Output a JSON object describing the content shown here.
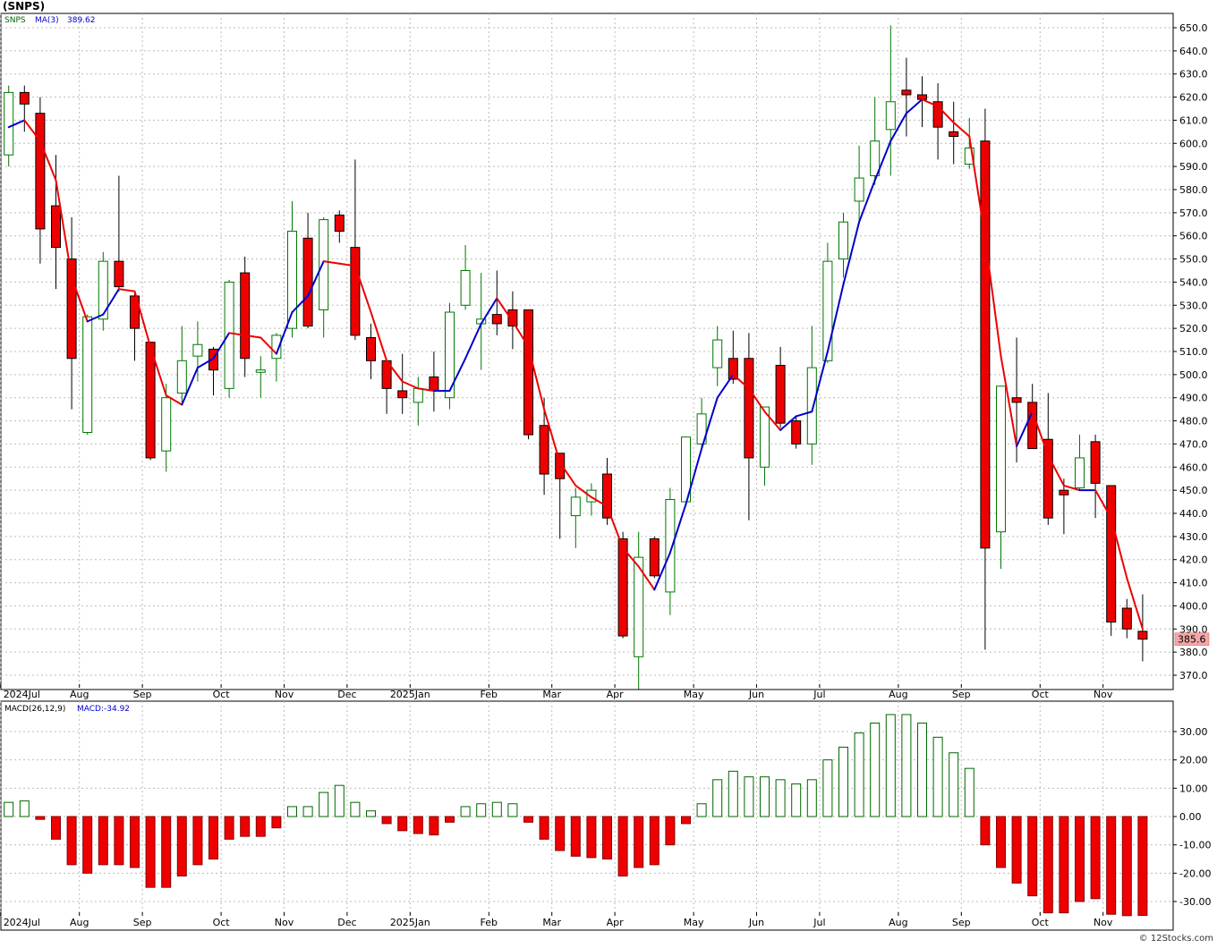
{
  "title": "(SNPS)",
  "footer": "© 12Stocks.com",
  "colors": {
    "up_candle": "#007700",
    "down_candle": "#ee0000",
    "ma_rising": "#0000cc",
    "ma_falling": "#ee0000",
    "grid": "#bbbbbb",
    "price_label_bg": "#f4a6a6",
    "macd_pos": "#006600",
    "macd_neg": "#ee0000"
  },
  "price_panel": {
    "legend_symbol": "SNPS",
    "legend_ma": "MA(3)",
    "legend_ma_value": "389.62",
    "last_price_label": "385.6",
    "last_price": 385.6
  },
  "macd_panel": {
    "legend_params": "MACD(26,12,9)",
    "legend_value": "MACD:-34.92"
  },
  "x_axis_labels": [
    {
      "text": "2024Jul",
      "i": 0
    },
    {
      "text": "Aug",
      "i": 5
    },
    {
      "text": "Sep",
      "i": 9
    },
    {
      "text": "Oct",
      "i": 14
    },
    {
      "text": "Nov",
      "i": 18
    },
    {
      "text": "Dec",
      "i": 22
    },
    {
      "text": "2025Jan",
      "i": 26
    },
    {
      "text": "Feb",
      "i": 31
    },
    {
      "text": "Mar",
      "i": 35
    },
    {
      "text": "Apr",
      "i": 39
    },
    {
      "text": "May",
      "i": 44
    },
    {
      "text": "Jun",
      "i": 48
    },
    {
      "text": "Jul",
      "i": 52
    },
    {
      "text": "Aug",
      "i": 57
    },
    {
      "text": "Sep",
      "i": 61
    },
    {
      "text": "Oct",
      "i": 66
    },
    {
      "text": "Nov",
      "i": 70
    }
  ],
  "chart_data": {
    "type": "candlestick",
    "title": "(SNPS)",
    "price_axis": {
      "min": 365,
      "max": 655,
      "ticks": [
        "370.0",
        "380.0",
        "390.0",
        "400.0",
        "410.0",
        "420.0",
        "430.0",
        "440.0",
        "450.0",
        "460.0",
        "470.0",
        "480.0",
        "490.0",
        "500.0",
        "510.0",
        "520.0",
        "530.0",
        "540.0",
        "550.0",
        "560.0",
        "570.0",
        "580.0",
        "590.0",
        "600.0",
        "610.0",
        "620.0",
        "630.0",
        "640.0",
        "650.0"
      ]
    },
    "macd_axis": {
      "min": -35,
      "max": 38,
      "ticks": [
        "-30.00",
        "-20.00",
        "-10.00",
        "0.00",
        "10.00",
        "20.00",
        "30.00"
      ]
    },
    "grid": true,
    "candles": [
      {
        "o": 595,
        "h": 625,
        "l": 590,
        "c": 622
      },
      {
        "o": 622,
        "h": 625,
        "l": 605,
        "c": 617
      },
      {
        "o": 613,
        "h": 620,
        "l": 548,
        "c": 563
      },
      {
        "o": 573,
        "h": 595,
        "l": 537,
        "c": 555
      },
      {
        "o": 550,
        "h": 568,
        "l": 485,
        "c": 507
      },
      {
        "o": 475,
        "h": 526,
        "l": 474,
        "c": 525
      },
      {
        "o": 524,
        "h": 553,
        "l": 519,
        "c": 549
      },
      {
        "o": 549,
        "h": 586,
        "l": 536,
        "c": 538
      },
      {
        "o": 534,
        "h": 535,
        "l": 506,
        "c": 520
      },
      {
        "o": 514,
        "h": 514,
        "l": 463,
        "c": 464
      },
      {
        "o": 467,
        "h": 496,
        "l": 458,
        "c": 490
      },
      {
        "o": 492,
        "h": 521,
        "l": 488,
        "c": 506
      },
      {
        "o": 508,
        "h": 523,
        "l": 497,
        "c": 513
      },
      {
        "o": 511,
        "h": 512,
        "l": 491,
        "c": 502
      },
      {
        "o": 494,
        "h": 541,
        "l": 490,
        "c": 540
      },
      {
        "o": 544,
        "h": 551,
        "l": 499,
        "c": 507
      },
      {
        "o": 501,
        "h": 508,
        "l": 490,
        "c": 502
      },
      {
        "o": 507,
        "h": 518,
        "l": 497,
        "c": 517
      },
      {
        "o": 520,
        "h": 575,
        "l": 516,
        "c": 562
      },
      {
        "o": 559,
        "h": 570,
        "l": 520,
        "c": 521
      },
      {
        "o": 528,
        "h": 568,
        "l": 516,
        "c": 567
      },
      {
        "o": 569,
        "h": 571,
        "l": 557,
        "c": 562
      },
      {
        "o": 555,
        "h": 593,
        "l": 515,
        "c": 517
      },
      {
        "o": 516,
        "h": 522,
        "l": 498,
        "c": 506
      },
      {
        "o": 506,
        "h": 506,
        "l": 483,
        "c": 494
      },
      {
        "o": 493,
        "h": 509,
        "l": 483,
        "c": 490
      },
      {
        "o": 488,
        "h": 499,
        "l": 478,
        "c": 494
      },
      {
        "o": 499,
        "h": 510,
        "l": 484,
        "c": 493
      },
      {
        "o": 490,
        "h": 531,
        "l": 485,
        "c": 527
      },
      {
        "o": 530,
        "h": 556,
        "l": 528,
        "c": 545
      },
      {
        "o": 522,
        "h": 544,
        "l": 502,
        "c": 524
      },
      {
        "o": 526,
        "h": 545,
        "l": 517,
        "c": 522
      },
      {
        "o": 528,
        "h": 536,
        "l": 511,
        "c": 521
      },
      {
        "o": 528,
        "h": 528,
        "l": 472,
        "c": 474
      },
      {
        "o": 478,
        "h": 490,
        "l": 448,
        "c": 457
      },
      {
        "o": 466,
        "h": 466,
        "l": 429,
        "c": 455
      },
      {
        "o": 439,
        "h": 451,
        "l": 425,
        "c": 447
      },
      {
        "o": 445,
        "h": 453,
        "l": 439,
        "c": 450
      },
      {
        "o": 457,
        "h": 464,
        "l": 435,
        "c": 438
      },
      {
        "o": 429,
        "h": 432,
        "l": 386,
        "c": 387
      },
      {
        "o": 378,
        "h": 432,
        "l": 364,
        "c": 421
      },
      {
        "o": 429,
        "h": 430,
        "l": 412,
        "c": 413
      },
      {
        "o": 406,
        "h": 451,
        "l": 396,
        "c": 446
      },
      {
        "o": 445,
        "h": 473,
        "l": 444,
        "c": 473
      },
      {
        "o": 470,
        "h": 490,
        "l": 468,
        "c": 483
      },
      {
        "o": 503,
        "h": 521,
        "l": 495,
        "c": 515
      },
      {
        "o": 507,
        "h": 519,
        "l": 496,
        "c": 498
      },
      {
        "o": 507,
        "h": 518,
        "l": 437,
        "c": 464
      },
      {
        "o": 460,
        "h": 486,
        "l": 452,
        "c": 486
      },
      {
        "o": 504,
        "h": 512,
        "l": 477,
        "c": 479
      },
      {
        "o": 480,
        "h": 482,
        "l": 468,
        "c": 470
      },
      {
        "o": 470,
        "h": 521,
        "l": 461,
        "c": 503
      },
      {
        "o": 506,
        "h": 557,
        "l": 505,
        "c": 549
      },
      {
        "o": 550,
        "h": 570,
        "l": 542,
        "c": 566
      },
      {
        "o": 575,
        "h": 599,
        "l": 565,
        "c": 585
      },
      {
        "o": 586,
        "h": 620,
        "l": 582,
        "c": 601
      },
      {
        "o": 606,
        "h": 651,
        "l": 586,
        "c": 618
      },
      {
        "o": 623,
        "h": 637,
        "l": 603,
        "c": 621
      },
      {
        "o": 621,
        "h": 629,
        "l": 607,
        "c": 619
      },
      {
        "o": 618,
        "h": 626,
        "l": 593,
        "c": 607
      },
      {
        "o": 605,
        "h": 618,
        "l": 591,
        "c": 603
      },
      {
        "o": 591,
        "h": 611,
        "l": 589,
        "c": 598
      },
      {
        "o": 601,
        "h": 615,
        "l": 381,
        "c": 425
      },
      {
        "o": 432,
        "h": 495,
        "l": 416,
        "c": 495
      },
      {
        "o": 490,
        "h": 516,
        "l": 462,
        "c": 488
      },
      {
        "o": 488,
        "h": 496,
        "l": 468,
        "c": 468
      },
      {
        "o": 472,
        "h": 492,
        "l": 435,
        "c": 438
      },
      {
        "o": 450,
        "h": 455,
        "l": 431,
        "c": 448
      },
      {
        "o": 451,
        "h": 474,
        "l": 450,
        "c": 464
      },
      {
        "o": 471,
        "h": 474,
        "l": 438,
        "c": 453
      },
      {
        "o": 452,
        "h": 452,
        "l": 387,
        "c": 393
      },
      {
        "o": 399,
        "h": 403,
        "l": 386,
        "c": 390
      },
      {
        "o": 389,
        "h": 405,
        "l": 376,
        "c": 385.6
      }
    ],
    "ma3": [
      607,
      610,
      601,
      584,
      542,
      523,
      526,
      537,
      536,
      512,
      491,
      487,
      503,
      507,
      518,
      517,
      516,
      509,
      527,
      534,
      549,
      548,
      547,
      527,
      506,
      497,
      494,
      493,
      493,
      507,
      522,
      533,
      523,
      512,
      485,
      462,
      452,
      447,
      443,
      425,
      417,
      407,
      423,
      444,
      468,
      490,
      500,
      494,
      484,
      476,
      482,
      484,
      510,
      539,
      566,
      584,
      601,
      613,
      619,
      616,
      609,
      603,
      559,
      508,
      469,
      484,
      465,
      452,
      450,
      450,
      438,
      412,
      390
    ],
    "macd": [
      5,
      5.5,
      -1,
      -8,
      -17,
      -20,
      -17,
      -17,
      -18,
      -25,
      -25,
      -21,
      -17,
      -15,
      -8,
      -7,
      -7,
      -4,
      3.5,
      3.5,
      8.5,
      11,
      5,
      2,
      -2.5,
      -5,
      -6,
      -6.5,
      -2,
      3.5,
      4.5,
      5,
      4.5,
      -2,
      -8,
      -12,
      -14,
      -14.5,
      -15,
      -21,
      -18,
      -17,
      -10,
      -2.5,
      4.5,
      13,
      16,
      14,
      14,
      13,
      11.5,
      13,
      20,
      24.5,
      29.5,
      33,
      36,
      36,
      33,
      28,
      22.5,
      17,
      -10,
      -18,
      -23.5,
      -28,
      -34,
      -34,
      -30,
      -29,
      -34.5,
      -35,
      -34.92
    ]
  }
}
